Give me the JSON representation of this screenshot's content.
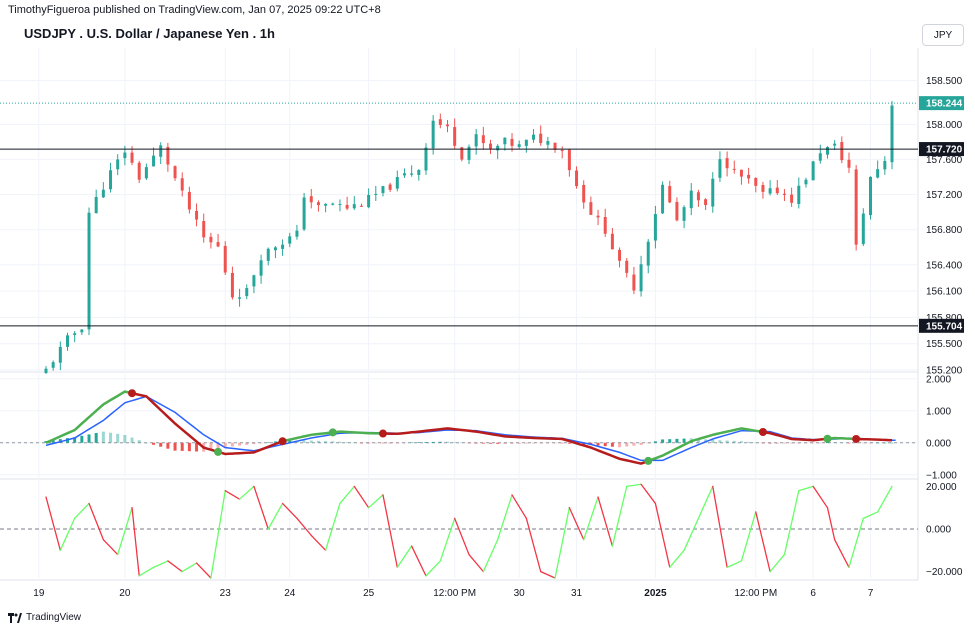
{
  "header": {
    "caption": "TimothyFigueroa published on TradingView.com, Jan 07, 2025 09:22 UTC+8",
    "symbol_title": "USDJPY . U.S. Dollar / Japanese Yen . 1h",
    "currency": "JPY"
  },
  "footer": {
    "brand": "TradingView"
  },
  "colors": {
    "up": "#26a69a",
    "down": "#ef5350",
    "grid": "#f0f3fa",
    "macd_fast_a": "#4caf50",
    "macd_fast_b": "#b71c1c",
    "macd_slow": "#2962ff",
    "rsi_up": "#66ff66",
    "rsi_down": "#f23645"
  },
  "chart_data": [
    {
      "type": "candlestick",
      "pane": "price",
      "ylim": [
        155.2,
        158.85
      ],
      "y_ticks": [
        "158.500",
        "158.000",
        "157.600",
        "157.200",
        "156.800",
        "156.400",
        "156.100",
        "155.800",
        "155.500",
        "155.200"
      ],
      "y_tick_values": [
        158.5,
        158.0,
        157.6,
        157.2,
        156.8,
        156.4,
        156.1,
        155.8,
        155.5,
        155.2
      ],
      "last_price": {
        "label": "158.244",
        "value": 158.244
      },
      "horizontal_levels": [
        {
          "label": "157.720",
          "value": 157.72
        },
        {
          "label": "155.704",
          "value": 155.704
        }
      ],
      "close_path": [
        [
          0,
          155.2
        ],
        [
          3,
          155.55
        ],
        [
          5,
          155.7
        ],
        [
          6,
          157.0
        ],
        [
          9,
          157.45
        ],
        [
          11,
          157.7
        ],
        [
          13,
          157.4
        ],
        [
          16,
          157.74
        ],
        [
          19,
          157.2
        ],
        [
          22,
          156.7
        ],
        [
          24,
          156.6
        ],
        [
          26,
          156.05
        ],
        [
          28,
          156.1
        ],
        [
          30,
          156.5
        ],
        [
          32,
          156.62
        ],
        [
          35,
          156.75
        ],
        [
          36,
          157.2
        ],
        [
          38,
          157.05
        ],
        [
          40,
          157.1
        ],
        [
          42,
          157.05
        ],
        [
          44,
          157.1
        ],
        [
          46,
          157.2
        ],
        [
          48,
          157.3
        ],
        [
          50,
          157.42
        ],
        [
          52,
          157.5
        ],
        [
          54,
          158.05
        ],
        [
          56,
          157.95
        ],
        [
          58,
          157.65
        ],
        [
          60,
          157.85
        ],
        [
          62,
          157.7
        ],
        [
          64,
          157.8
        ],
        [
          66,
          157.75
        ],
        [
          68,
          157.85
        ],
        [
          70,
          157.8
        ],
        [
          72,
          157.72
        ],
        [
          74,
          157.3
        ],
        [
          76,
          157.0
        ],
        [
          78,
          156.8
        ],
        [
          80,
          156.4
        ],
        [
          82,
          156.15
        ],
        [
          84,
          156.7
        ],
        [
          86,
          157.3
        ],
        [
          88,
          156.9
        ],
        [
          90,
          157.2
        ],
        [
          92,
          157.05
        ],
        [
          94,
          157.65
        ],
        [
          96,
          157.45
        ],
        [
          98,
          157.35
        ],
        [
          100,
          157.2
        ],
        [
          102,
          157.25
        ],
        [
          104,
          157.15
        ],
        [
          106,
          157.4
        ],
        [
          108,
          157.7
        ],
        [
          110,
          157.75
        ],
        [
          112,
          157.5
        ],
        [
          113,
          156.6
        ],
        [
          115,
          157.4
        ],
        [
          117,
          157.6
        ],
        [
          118,
          158.244
        ]
      ],
      "candle_count": 119,
      "seed": 11
    },
    {
      "type": "line",
      "pane": "macd",
      "ylim": [
        -1.1,
        2.15
      ],
      "y_ticks": [
        "2.000",
        "1.000",
        "0.000",
        "−1.000"
      ],
      "y_tick_values": [
        2,
        1,
        0,
        -1
      ],
      "series": [
        {
          "role": "fast",
          "points": [
            [
              0,
              0.0
            ],
            [
              4,
              0.4
            ],
            [
              8,
              1.2
            ],
            [
              11,
              1.6
            ],
            [
              14,
              1.45
            ],
            [
              18,
              0.6
            ],
            [
              22,
              -0.15
            ],
            [
              25,
              -0.35
            ],
            [
              29,
              -0.3
            ],
            [
              33,
              0.05
            ],
            [
              37,
              0.25
            ],
            [
              41,
              0.35
            ],
            [
              45,
              0.3
            ],
            [
              49,
              0.28
            ],
            [
              52,
              0.35
            ],
            [
              56,
              0.45
            ],
            [
              60,
              0.35
            ],
            [
              64,
              0.2
            ],
            [
              68,
              0.15
            ],
            [
              72,
              0.12
            ],
            [
              76,
              -0.15
            ],
            [
              80,
              -0.5
            ],
            [
              83,
              -0.65
            ],
            [
              86,
              -0.4
            ],
            [
              90,
              0.05
            ],
            [
              93,
              0.25
            ],
            [
              97,
              0.45
            ],
            [
              101,
              0.3
            ],
            [
              104,
              0.12
            ],
            [
              107,
              0.08
            ],
            [
              110,
              0.15
            ],
            [
              113,
              0.12
            ],
            [
              116,
              0.1
            ],
            [
              118,
              0.08
            ]
          ]
        },
        {
          "role": "slow",
          "points": [
            [
              0,
              -0.08
            ],
            [
              4,
              0.15
            ],
            [
              8,
              0.7
            ],
            [
              11,
              1.25
            ],
            [
              14,
              1.45
            ],
            [
              18,
              0.95
            ],
            [
              22,
              0.25
            ],
            [
              25,
              -0.15
            ],
            [
              29,
              -0.25
            ],
            [
              33,
              -0.05
            ],
            [
              37,
              0.15
            ],
            [
              41,
              0.3
            ],
            [
              45,
              0.32
            ],
            [
              49,
              0.3
            ],
            [
              52,
              0.32
            ],
            [
              56,
              0.4
            ],
            [
              60,
              0.38
            ],
            [
              64,
              0.25
            ],
            [
              68,
              0.18
            ],
            [
              72,
              0.14
            ],
            [
              76,
              -0.05
            ],
            [
              80,
              -0.3
            ],
            [
              83,
              -0.55
            ],
            [
              86,
              -0.55
            ],
            [
              90,
              -0.15
            ],
            [
              93,
              0.12
            ],
            [
              97,
              0.38
            ],
            [
              101,
              0.35
            ],
            [
              104,
              0.15
            ],
            [
              107,
              0.1
            ],
            [
              110,
              0.12
            ],
            [
              113,
              0.14
            ],
            [
              116,
              0.1
            ],
            [
              118,
              0.08
            ]
          ]
        }
      ],
      "crossovers": [
        [
          12,
          "down"
        ],
        [
          24,
          "up"
        ],
        [
          33,
          "down"
        ],
        [
          40,
          "up"
        ],
        [
          47,
          "down"
        ],
        [
          84,
          "up"
        ],
        [
          100,
          "down"
        ],
        [
          109,
          "up"
        ],
        [
          113,
          "down"
        ]
      ]
    },
    {
      "type": "line",
      "pane": "rsi_like",
      "ylim": [
        -23,
        23
      ],
      "y_ticks": [
        "20.000",
        "0.000",
        "−20.000"
      ],
      "y_tick_values": [
        20,
        0,
        -20
      ],
      "series": [
        {
          "role": "oscillator",
          "points": [
            [
              0,
              15
            ],
            [
              2,
              -10
            ],
            [
              4,
              5
            ],
            [
              6,
              12
            ],
            [
              8,
              -5
            ],
            [
              10,
              -12
            ],
            [
              12,
              10
            ],
            [
              13,
              -22
            ],
            [
              15,
              -18
            ],
            [
              17,
              -15
            ],
            [
              19,
              -20
            ],
            [
              21,
              -16
            ],
            [
              23,
              -23
            ],
            [
              25,
              18
            ],
            [
              27,
              14
            ],
            [
              29,
              20
            ],
            [
              31,
              0
            ],
            [
              33,
              12
            ],
            [
              35,
              5
            ],
            [
              37,
              -3
            ],
            [
              39,
              -10
            ],
            [
              41,
              12
            ],
            [
              43,
              20
            ],
            [
              45,
              10
            ],
            [
              47,
              16
            ],
            [
              49,
              -18
            ],
            [
              51,
              -8
            ],
            [
              53,
              -22
            ],
            [
              55,
              -15
            ],
            [
              57,
              5
            ],
            [
              59,
              -12
            ],
            [
              61,
              -20
            ],
            [
              63,
              -5
            ],
            [
              65,
              16
            ],
            [
              67,
              5
            ],
            [
              69,
              -20
            ],
            [
              71,
              -23
            ],
            [
              73,
              10
            ],
            [
              75,
              -5
            ],
            [
              77,
              15
            ],
            [
              79,
              -8
            ],
            [
              81,
              20
            ],
            [
              83,
              21
            ],
            [
              85,
              12
            ],
            [
              87,
              -18
            ],
            [
              89,
              -10
            ],
            [
              91,
              5
            ],
            [
              93,
              20
            ],
            [
              95,
              -18
            ],
            [
              97,
              -15
            ],
            [
              99,
              8
            ],
            [
              101,
              -20
            ],
            [
              103,
              -12
            ],
            [
              105,
              18
            ],
            [
              107,
              20
            ],
            [
              109,
              10
            ],
            [
              110,
              -5
            ],
            [
              112,
              -18
            ],
            [
              114,
              5
            ],
            [
              116,
              8
            ],
            [
              118,
              20
            ]
          ]
        }
      ]
    }
  ],
  "x_axis": {
    "labels": [
      {
        "text": "19",
        "bold": false,
        "i": -1
      },
      {
        "text": "20",
        "bold": false,
        "i": 11
      },
      {
        "text": "23",
        "bold": false,
        "i": 25
      },
      {
        "text": "24",
        "bold": false,
        "i": 34
      },
      {
        "text": "25",
        "bold": false,
        "i": 45
      },
      {
        "text": "12:00 PM",
        "bold": false,
        "i": 57
      },
      {
        "text": "30",
        "bold": false,
        "i": 66
      },
      {
        "text": "31",
        "bold": false,
        "i": 74
      },
      {
        "text": "2025",
        "bold": true,
        "i": 85
      },
      {
        "text": "12:00 PM",
        "bold": false,
        "i": 99
      },
      {
        "text": "6",
        "bold": false,
        "i": 107
      },
      {
        "text": "7",
        "bold": false,
        "i": 115
      }
    ]
  }
}
